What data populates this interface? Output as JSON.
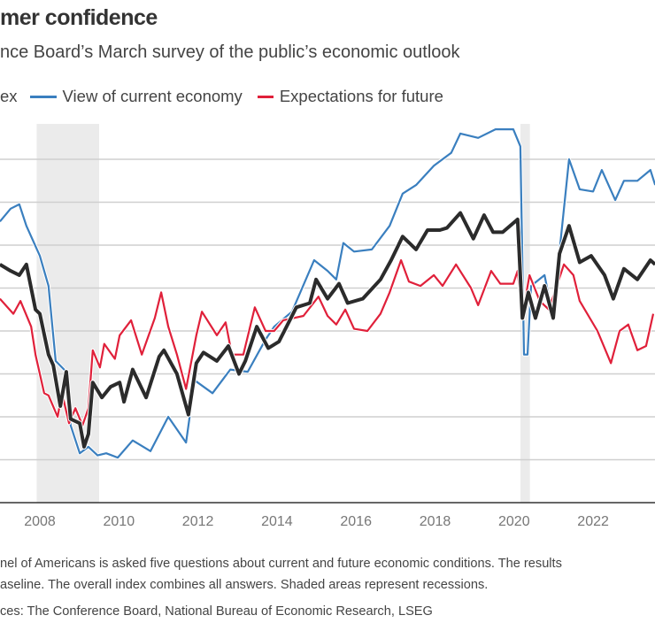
{
  "header": {
    "title": "mer confidence",
    "subtitle": "nce Board’s March survey of the public’s economic outlook"
  },
  "legend": [
    {
      "label": "ex",
      "color": "#2b2b2b"
    },
    {
      "label": "View of current economy",
      "color": "#3a7fbf"
    },
    {
      "label": "Expectations for future",
      "color": "#e0203a"
    }
  ],
  "footnotes": {
    "line1": "nel of Americans is asked five questions about current and future economic conditions. The results",
    "line2": "aseline. The overall index combines all answers. Shaded areas represent recessions.",
    "source": "ces: The Conference Board, National Bureau of Economic Research, LSEG"
  },
  "chart_data": {
    "type": "line",
    "title": "",
    "xlabel": "",
    "ylabel": "",
    "xlim": [
      2007.0,
      2023.6
    ],
    "ylim": [
      0,
      180
    ],
    "grid": true,
    "y_gridlines": [
      20,
      40,
      60,
      80,
      100,
      120,
      140,
      160
    ],
    "x_ticks": [
      "2008",
      "2010",
      "2012",
      "2014",
      "2016",
      "2018",
      "2020",
      "2022",
      "2024"
    ],
    "recessions": [
      [
        2007.92,
        2009.5
      ],
      [
        2020.16,
        2020.4
      ]
    ],
    "recession_color": "#ebebeb",
    "legend_placement": "top-left",
    "series": [
      {
        "name": "View of current economy",
        "color": "#3a7fbf",
        "points": [
          [
            2006.99,
            131
          ],
          [
            2007.26,
            137
          ],
          [
            2007.48,
            139
          ],
          [
            2007.66,
            129
          ],
          [
            2008.0,
            115
          ],
          [
            2008.22,
            101
          ],
          [
            2008.4,
            66
          ],
          [
            2008.67,
            61
          ],
          [
            2008.78,
            36
          ],
          [
            2009.01,
            23
          ],
          [
            2009.23,
            26
          ],
          [
            2009.46,
            22
          ],
          [
            2009.68,
            23
          ],
          [
            2009.97,
            21
          ],
          [
            2010.35,
            29
          ],
          [
            2010.8,
            24
          ],
          [
            2011.25,
            40
          ],
          [
            2011.7,
            28
          ],
          [
            2011.92,
            57
          ],
          [
            2012.37,
            51
          ],
          [
            2012.82,
            62
          ],
          [
            2013.26,
            61
          ],
          [
            2013.71,
            76
          ],
          [
            2013.93,
            82
          ],
          [
            2014.38,
            89
          ],
          [
            2014.94,
            113
          ],
          [
            2015.28,
            108
          ],
          [
            2015.5,
            104
          ],
          [
            2015.68,
            121
          ],
          [
            2015.95,
            117
          ],
          [
            2016.4,
            118
          ],
          [
            2016.85,
            129
          ],
          [
            2017.18,
            144
          ],
          [
            2017.52,
            148
          ],
          [
            2017.97,
            157
          ],
          [
            2018.41,
            163
          ],
          [
            2018.64,
            172
          ],
          [
            2019.09,
            170
          ],
          [
            2019.53,
            174
          ],
          [
            2019.98,
            174
          ],
          [
            2020.16,
            166
          ],
          [
            2020.25,
            69
          ],
          [
            2020.34,
            69
          ],
          [
            2020.43,
            101
          ],
          [
            2020.77,
            106
          ],
          [
            2020.99,
            86
          ],
          [
            2021.15,
            117
          ],
          [
            2021.39,
            160
          ],
          [
            2021.66,
            146
          ],
          [
            2022.0,
            145
          ],
          [
            2022.22,
            155
          ],
          [
            2022.56,
            141
          ],
          [
            2022.78,
            150
          ],
          [
            2023.12,
            150
          ],
          [
            2023.45,
            155
          ],
          [
            2023.57,
            148
          ]
        ]
      },
      {
        "name": "Expectations for future",
        "color": "#e0203a",
        "points": [
          [
            2006.99,
            95
          ],
          [
            2007.33,
            88
          ],
          [
            2007.51,
            94
          ],
          [
            2007.78,
            82
          ],
          [
            2007.89,
            69
          ],
          [
            2008.11,
            51
          ],
          [
            2008.22,
            50
          ],
          [
            2008.45,
            40
          ],
          [
            2008.56,
            51
          ],
          [
            2008.74,
            37
          ],
          [
            2008.9,
            44
          ],
          [
            2009.08,
            36
          ],
          [
            2009.23,
            44
          ],
          [
            2009.34,
            71
          ],
          [
            2009.52,
            63
          ],
          [
            2009.63,
            74
          ],
          [
            2009.9,
            67
          ],
          [
            2010.02,
            78
          ],
          [
            2010.31,
            85
          ],
          [
            2010.58,
            69
          ],
          [
            2010.91,
            86
          ],
          [
            2011.07,
            98
          ],
          [
            2011.25,
            82
          ],
          [
            2011.47,
            69
          ],
          [
            2011.7,
            53
          ],
          [
            2011.96,
            78
          ],
          [
            2012.1,
            89
          ],
          [
            2012.48,
            78
          ],
          [
            2012.7,
            84
          ],
          [
            2012.86,
            69
          ],
          [
            2013.15,
            69
          ],
          [
            2013.44,
            91
          ],
          [
            2013.71,
            80
          ],
          [
            2013.93,
            80
          ],
          [
            2014.16,
            85
          ],
          [
            2014.67,
            87
          ],
          [
            2015.05,
            96
          ],
          [
            2015.28,
            87
          ],
          [
            2015.5,
            83
          ],
          [
            2015.73,
            90
          ],
          [
            2015.95,
            81
          ],
          [
            2016.29,
            80
          ],
          [
            2016.62,
            88
          ],
          [
            2016.85,
            98
          ],
          [
            2017.14,
            113
          ],
          [
            2017.34,
            103
          ],
          [
            2017.63,
            101
          ],
          [
            2017.97,
            106
          ],
          [
            2018.19,
            101
          ],
          [
            2018.53,
            111
          ],
          [
            2018.91,
            100
          ],
          [
            2019.09,
            92
          ],
          [
            2019.42,
            108
          ],
          [
            2019.65,
            102
          ],
          [
            2019.98,
            102
          ],
          [
            2020.09,
            108
          ],
          [
            2020.21,
            87
          ],
          [
            2020.39,
            106
          ],
          [
            2020.65,
            94
          ],
          [
            2020.88,
            90
          ],
          [
            2021.26,
            111
          ],
          [
            2021.5,
            106
          ],
          [
            2021.66,
            94
          ],
          [
            2022.11,
            80
          ],
          [
            2022.45,
            65
          ],
          [
            2022.67,
            80
          ],
          [
            2022.89,
            83
          ],
          [
            2023.12,
            71
          ],
          [
            2023.34,
            73
          ],
          [
            2023.52,
            88
          ]
        ]
      },
      {
        "name": "ex",
        "color": "#2b2b2b",
        "points": [
          [
            2006.99,
            111
          ],
          [
            2007.26,
            108
          ],
          [
            2007.48,
            106
          ],
          [
            2007.66,
            111
          ],
          [
            2007.89,
            90
          ],
          [
            2008.0,
            88
          ],
          [
            2008.22,
            69
          ],
          [
            2008.34,
            64
          ],
          [
            2008.52,
            45
          ],
          [
            2008.67,
            61
          ],
          [
            2008.78,
            39
          ],
          [
            2009.01,
            37
          ],
          [
            2009.12,
            26
          ],
          [
            2009.23,
            32
          ],
          [
            2009.34,
            56
          ],
          [
            2009.57,
            49
          ],
          [
            2009.79,
            54
          ],
          [
            2010.02,
            56
          ],
          [
            2010.13,
            47
          ],
          [
            2010.35,
            62
          ],
          [
            2010.69,
            49
          ],
          [
            2011.02,
            68
          ],
          [
            2011.14,
            71
          ],
          [
            2011.47,
            60
          ],
          [
            2011.76,
            41
          ],
          [
            2011.96,
            65
          ],
          [
            2012.14,
            70
          ],
          [
            2012.48,
            66
          ],
          [
            2012.77,
            73
          ],
          [
            2013.04,
            60
          ],
          [
            2013.2,
            66
          ],
          [
            2013.49,
            82
          ],
          [
            2013.78,
            72
          ],
          [
            2014.05,
            75
          ],
          [
            2014.49,
            91
          ],
          [
            2014.83,
            93
          ],
          [
            2014.99,
            104
          ],
          [
            2015.28,
            95
          ],
          [
            2015.57,
            102
          ],
          [
            2015.79,
            93
          ],
          [
            2016.17,
            95
          ],
          [
            2016.62,
            104
          ],
          [
            2016.89,
            113
          ],
          [
            2017.18,
            124
          ],
          [
            2017.52,
            118
          ],
          [
            2017.81,
            127
          ],
          [
            2018.12,
            127
          ],
          [
            2018.3,
            128
          ],
          [
            2018.64,
            135
          ],
          [
            2018.97,
            123
          ],
          [
            2019.24,
            134
          ],
          [
            2019.47,
            126
          ],
          [
            2019.71,
            126
          ],
          [
            2020.09,
            132
          ],
          [
            2020.21,
            86
          ],
          [
            2020.36,
            98
          ],
          [
            2020.54,
            86
          ],
          [
            2020.77,
            101
          ],
          [
            2020.99,
            86
          ],
          [
            2021.15,
            116
          ],
          [
            2021.39,
            129
          ],
          [
            2021.66,
            112
          ],
          [
            2021.95,
            115
          ],
          [
            2022.29,
            106
          ],
          [
            2022.51,
            95
          ],
          [
            2022.78,
            109
          ],
          [
            2023.12,
            104
          ],
          [
            2023.45,
            113
          ],
          [
            2023.57,
            111
          ]
        ]
      }
    ]
  }
}
